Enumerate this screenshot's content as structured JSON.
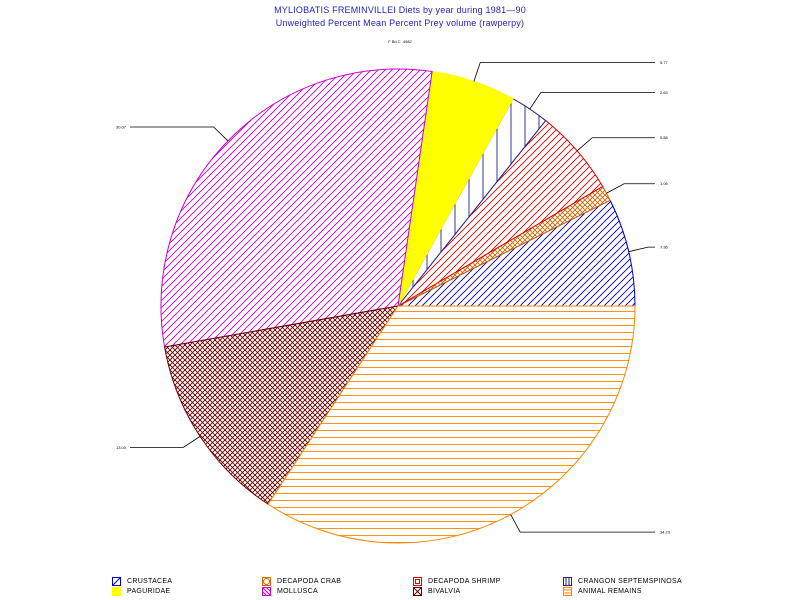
{
  "chart_data": {
    "type": "pie",
    "title": "MYLIOBATIS FREMINVILLEI Diets by year during 1981—90",
    "subtitle": "Unweighted Percent Mean Percent Prey  volume (rawperpy)",
    "caption": "F Bd C  4982",
    "slices": [
      {
        "name": "CRUSTACEA",
        "value": 7.36,
        "label": "7.36",
        "color": "#0000cc",
        "pattern": "diag-forward"
      },
      {
        "name": "DECAPODA CRAB",
        "value": 1.06,
        "label": "1.06",
        "color": "#cc6600",
        "pattern": "cross"
      },
      {
        "name": "DECAPODA SHRIMP",
        "value": 5.88,
        "label": "5.88",
        "color": "#dd0000",
        "pattern": "diag-forward"
      },
      {
        "name": "CRANGON SEPTEMSPINOSA",
        "value": 2.63,
        "label": "2.63",
        "color": "#222288",
        "pattern": "vertical"
      },
      {
        "name": "PAGURIDAE",
        "value": 5.77,
        "label": "5.77",
        "color": "#ffff00",
        "pattern": "solid"
      },
      {
        "name": "MOLLUSCA",
        "value": 30.07,
        "label": "30.07",
        "color": "#cc00cc",
        "pattern": "diag-forward"
      },
      {
        "name": "BIVALVIA",
        "value": 13.0,
        "label": "13.00",
        "color": "#660000",
        "pattern": "cross"
      },
      {
        "name": "ANIMAL REMAINS",
        "value": 34.23,
        "label": "34.23",
        "color": "#ff8800",
        "pattern": "horizontal"
      }
    ],
    "start_angle_deg": 0,
    "direction": "counterclockwise",
    "legend_position": "bottom"
  },
  "legend": {
    "items": [
      {
        "label": "CRUSTACEA",
        "color": "#0000cc",
        "pattern": "diag-forward"
      },
      {
        "label": "DECAPODA CRAB",
        "color": "#cc6600",
        "pattern": "circle"
      },
      {
        "label": "DECAPODA SHRIMP",
        "color": "#dd0000",
        "pattern": "square"
      },
      {
        "label": "CRANGON SEPTEMSPINOSA",
        "color": "#222288",
        "pattern": "vertical"
      },
      {
        "label": "PAGURIDAE",
        "color": "#ffff00",
        "pattern": "solid"
      },
      {
        "label": "MOLLUSCA",
        "color": "#cc00cc",
        "pattern": "diag-forward"
      },
      {
        "label": "BIVALVIA",
        "color": "#660000",
        "pattern": "cross"
      },
      {
        "label": "ANIMAL REMAINS",
        "color": "#ff8800",
        "pattern": "horizontal"
      }
    ]
  }
}
